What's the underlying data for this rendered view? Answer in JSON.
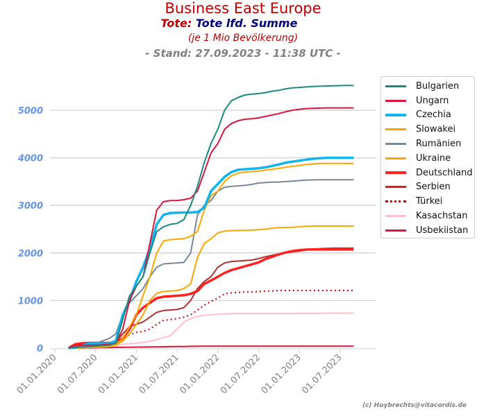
{
  "title": "Business East Europe",
  "subtitle_a": "Tote:",
  "subtitle_b": "Tote lfd. Summe",
  "subtitle2": "(je 1 Mio Bevölkerung)",
  "stand": "- Stand: 27.09.2023 - 11:38 UTC -",
  "copyright": "(c) Huybrechts@vitacordis.de",
  "chart_data": {
    "type": "line",
    "title": "Business East Europe",
    "x_start_month": "2020-03",
    "x_step": "1 month",
    "ylim": [
      0,
      5600
    ],
    "yticks": [
      "0",
      "1000",
      "2000",
      "3000",
      "4000",
      "5000"
    ],
    "ytick_values": [
      0,
      1000,
      2000,
      3000,
      4000,
      5000
    ],
    "xticks": [
      "01.01.2020",
      "01.07.2020",
      "01.01.2021",
      "01.07.2021",
      "01.01.2022",
      "01.07.2022",
      "01.01.2023",
      "01.07.2023"
    ],
    "xtick_months": [
      0,
      6,
      12,
      18,
      24,
      30,
      36,
      42
    ],
    "grid": "horizontal",
    "legend": "right",
    "series": [
      {
        "name": "Bulgarien",
        "color": "#1a8a80",
        "width": 2,
        "values": [
          0,
          10,
          20,
          30,
          40,
          50,
          60,
          100,
          600,
          1100,
          1300,
          1500,
          2000,
          2450,
          2550,
          2600,
          2620,
          2700,
          3000,
          3400,
          3900,
          4300,
          4600,
          5000,
          5200,
          5270,
          5320,
          5340,
          5350,
          5370,
          5400,
          5420,
          5450,
          5470,
          5480,
          5490,
          5500,
          5505,
          5510,
          5515,
          5518,
          5520,
          5520
        ]
      },
      {
        "name": "Ungarn",
        "color": "#dc143c",
        "width": 2,
        "values": [
          0,
          50,
          60,
          60,
          60,
          70,
          80,
          100,
          400,
          1000,
          1300,
          1500,
          2200,
          2900,
          3080,
          3100,
          3100,
          3120,
          3150,
          3300,
          3700,
          4100,
          4300,
          4600,
          4720,
          4780,
          4810,
          4820,
          4840,
          4870,
          4900,
          4930,
          4970,
          5000,
          5020,
          5035,
          5040,
          5045,
          5050,
          5050,
          5050,
          5050,
          5050
        ]
      },
      {
        "name": "Czechia",
        "color": "#10b4f0",
        "width": 3.5,
        "values": [
          0,
          10,
          50,
          100,
          100,
          100,
          100,
          150,
          700,
          1000,
          1400,
          1700,
          2100,
          2600,
          2800,
          2840,
          2845,
          2850,
          2850,
          2860,
          2950,
          3300,
          3450,
          3600,
          3700,
          3750,
          3760,
          3770,
          3780,
          3800,
          3830,
          3860,
          3900,
          3920,
          3940,
          3960,
          3980,
          3990,
          4000,
          4000,
          4000,
          4000,
          4000
        ]
      },
      {
        "name": "Slowakei",
        "color": "#ffa500",
        "width": 2,
        "values": [
          0,
          5,
          10,
          10,
          15,
          20,
          30,
          80,
          200,
          450,
          700,
          1100,
          1500,
          2000,
          2250,
          2280,
          2290,
          2300,
          2350,
          2450,
          2900,
          3200,
          3300,
          3500,
          3620,
          3680,
          3700,
          3710,
          3720,
          3740,
          3760,
          3780,
          3800,
          3820,
          3840,
          3860,
          3870,
          3880,
          3880,
          3880,
          3880,
          3880,
          3880
        ]
      },
      {
        "name": "Rumänien",
        "color": "#778899",
        "width": 2,
        "values": [
          0,
          20,
          50,
          80,
          100,
          150,
          200,
          300,
          700,
          950,
          1100,
          1250,
          1500,
          1700,
          1770,
          1780,
          1790,
          1800,
          2000,
          2800,
          3000,
          3100,
          3300,
          3380,
          3400,
          3410,
          3420,
          3440,
          3470,
          3480,
          3490,
          3490,
          3500,
          3510,
          3520,
          3530,
          3535,
          3540,
          3540,
          3540,
          3540,
          3540,
          3540
        ]
      },
      {
        "name": "Ukraine",
        "color": "#ffa500",
        "width": 2,
        "values": [
          0,
          0,
          5,
          10,
          20,
          30,
          40,
          60,
          150,
          300,
          500,
          700,
          1000,
          1150,
          1190,
          1200,
          1210,
          1250,
          1350,
          1900,
          2200,
          2300,
          2420,
          2460,
          2470,
          2475,
          2475,
          2480,
          2490,
          2500,
          2520,
          2530,
          2535,
          2540,
          2550,
          2560,
          2565,
          2565,
          2565,
          2565,
          2565,
          2565,
          2565
        ]
      },
      {
        "name": "Deutschland",
        "color": "#ff2020",
        "width": 3.5,
        "values": [
          0,
          80,
          100,
          110,
          110,
          110,
          110,
          120,
          200,
          400,
          700,
          850,
          950,
          1050,
          1080,
          1090,
          1100,
          1110,
          1140,
          1200,
          1350,
          1420,
          1500,
          1580,
          1640,
          1680,
          1720,
          1760,
          1800,
          1870,
          1920,
          1970,
          2010,
          2040,
          2060,
          2070,
          2075,
          2075,
          2075,
          2075,
          2075,
          2075,
          2075
        ]
      },
      {
        "name": "Serbien",
        "color": "#b03030",
        "width": 2,
        "values": [
          0,
          30,
          60,
          70,
          80,
          90,
          100,
          120,
          300,
          450,
          500,
          550,
          650,
          750,
          790,
          800,
          810,
          850,
          1000,
          1250,
          1400,
          1500,
          1700,
          1790,
          1820,
          1830,
          1840,
          1850,
          1880,
          1920,
          1950,
          1980,
          2000,
          2020,
          2040,
          2060,
          2080,
          2090,
          2095,
          2100,
          2100,
          2100,
          2100
        ]
      },
      {
        "name": "Türkei",
        "color": "#cc0000",
        "width": 2,
        "dotted": true,
        "values": [
          0,
          20,
          40,
          50,
          60,
          70,
          80,
          100,
          200,
          280,
          330,
          350,
          400,
          500,
          580,
          600,
          620,
          650,
          700,
          800,
          900,
          980,
          1050,
          1140,
          1160,
          1170,
          1180,
          1180,
          1190,
          1200,
          1200,
          1210,
          1210,
          1210,
          1210,
          1210,
          1210,
          1210,
          1210,
          1210,
          1210,
          1210,
          1210
        ]
      },
      {
        "name": "Kasachstan",
        "color": "#ffc0cb",
        "width": 2,
        "values": [
          0,
          0,
          10,
          20,
          30,
          40,
          50,
          60,
          80,
          90,
          100,
          120,
          140,
          180,
          220,
          260,
          400,
          550,
          620,
          660,
          690,
          700,
          710,
          720,
          725,
          725,
          725,
          725,
          725,
          725,
          725,
          725,
          725,
          725,
          730,
          730,
          730,
          730,
          735,
          735,
          735,
          735,
          735
        ]
      },
      {
        "name": "Usbekiistan",
        "color": "#dc143c",
        "width": 2,
        "values": [
          0,
          2,
          4,
          6,
          8,
          10,
          12,
          14,
          16,
          18,
          20,
          22,
          24,
          26,
          28,
          30,
          32,
          34,
          36,
          38,
          40,
          40,
          40,
          40,
          40,
          40,
          40,
          40,
          40,
          40,
          40,
          40,
          40,
          40,
          40,
          40,
          40,
          40,
          40,
          40,
          40,
          40,
          40
        ]
      }
    ]
  }
}
